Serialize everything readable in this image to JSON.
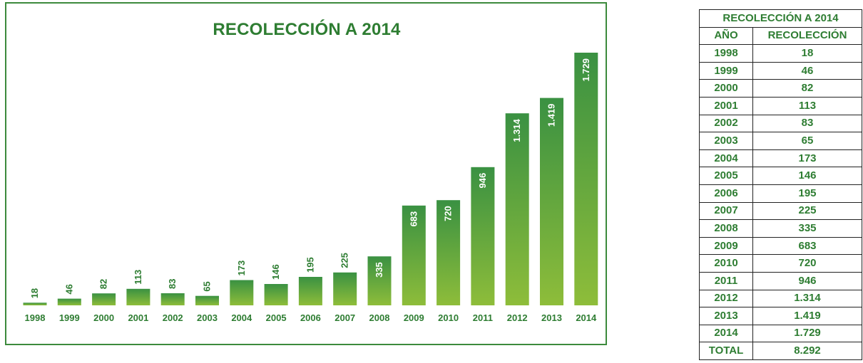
{
  "chart_data": {
    "type": "bar",
    "title": "RECOLECCIÓN A 2014",
    "categories": [
      "1998",
      "1999",
      "2000",
      "2001",
      "2002",
      "2003",
      "2004",
      "2005",
      "2006",
      "2007",
      "2008",
      "2009",
      "2010",
      "2011",
      "2012",
      "2013",
      "2014"
    ],
    "values": [
      18,
      46,
      82,
      113,
      83,
      65,
      173,
      146,
      195,
      225,
      335,
      683,
      720,
      946,
      1314,
      1419,
      1729
    ],
    "value_labels": [
      "18",
      "46",
      "82",
      "113",
      "83",
      "65",
      "173",
      "146",
      "195",
      "225",
      "335",
      "683",
      "720",
      "946",
      "1.314",
      "1.419",
      "1.729"
    ],
    "xlabel": "",
    "ylabel": "",
    "ylim": [
      0,
      1729
    ],
    "grid": false,
    "legend": "none",
    "colors": {
      "bar_top": "#3a9142",
      "bar_bottom": "#8ebd3a",
      "text": "#2e7d32",
      "frame": "#3c8a3c"
    }
  },
  "table": {
    "title": "RECOLECCIÓN A 2014",
    "headers": [
      "AÑO",
      "RECOLECCIÓN"
    ],
    "rows": [
      [
        "1998",
        "18"
      ],
      [
        "1999",
        "46"
      ],
      [
        "2000",
        "82"
      ],
      [
        "2001",
        "113"
      ],
      [
        "2002",
        "83"
      ],
      [
        "2003",
        "65"
      ],
      [
        "2004",
        "173"
      ],
      [
        "2005",
        "146"
      ],
      [
        "2006",
        "195"
      ],
      [
        "2007",
        "225"
      ],
      [
        "2008",
        "335"
      ],
      [
        "2009",
        "683"
      ],
      [
        "2010",
        "720"
      ],
      [
        "2011",
        "946"
      ],
      [
        "2012",
        "1.314"
      ],
      [
        "2013",
        "1.419"
      ],
      [
        "2014",
        "1.729"
      ]
    ],
    "total_label": "TOTAL",
    "total_value": "8.292"
  }
}
